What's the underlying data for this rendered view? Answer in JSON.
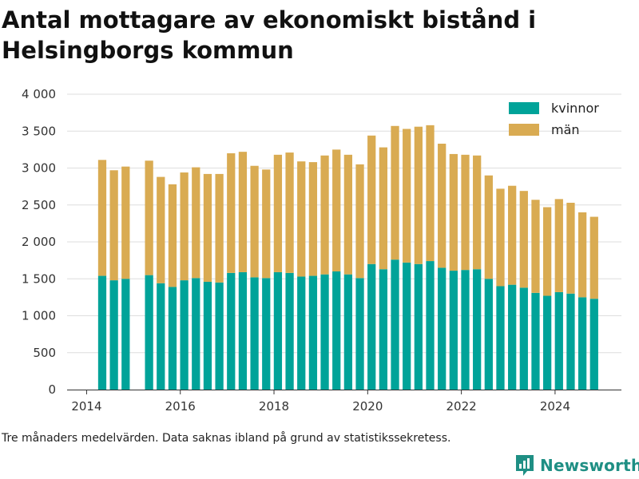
{
  "brand": {
    "name": "Newsworthy",
    "color": "#1f8f84"
  },
  "footnote": "Tre månaders medelvärden. Data saknas ibland på grund av statistikssekretess.",
  "chart_data": {
    "type": "bar",
    "stacked": true,
    "title": "Antal mottagare av ekonomiskt bistånd i Helsingborgs kommun",
    "xlabel": "",
    "ylabel": "",
    "ylim": [
      0,
      4000
    ],
    "xlim": [
      "2013-08",
      "2025-06"
    ],
    "y_ticks": [
      0,
      500,
      1000,
      1500,
      2000,
      2500,
      3000,
      3500,
      4000
    ],
    "y_tick_labels": [
      "0",
      "500",
      "1 000",
      "1 500",
      "2 000",
      "2 500",
      "3 000",
      "3 500",
      "4 000"
    ],
    "x_ticks": [
      "2014",
      "2016",
      "2018",
      "2020",
      "2022",
      "2024"
    ],
    "grid": "horizontal",
    "legend_position": "top-right",
    "x": [
      "2014-05",
      "2014-08",
      "2014-11",
      "2015-05",
      "2015-08",
      "2015-11",
      "2016-02",
      "2016-05",
      "2016-08",
      "2016-11",
      "2017-02",
      "2017-05",
      "2017-08",
      "2017-11",
      "2018-02",
      "2018-05",
      "2018-08",
      "2018-11",
      "2019-02",
      "2019-05",
      "2019-08",
      "2019-11",
      "2020-02",
      "2020-05",
      "2020-08",
      "2020-11",
      "2021-02",
      "2021-05",
      "2021-08",
      "2021-11",
      "2022-02",
      "2022-05",
      "2022-08",
      "2022-11",
      "2023-02",
      "2023-05",
      "2023-08",
      "2023-11",
      "2024-02",
      "2024-05",
      "2024-08",
      "2024-11"
    ],
    "series": [
      {
        "name": "kvinnor",
        "color": "#00a399",
        "values": [
          1540,
          1480,
          1500,
          1550,
          1440,
          1390,
          1480,
          1510,
          1460,
          1450,
          1580,
          1590,
          1520,
          1510,
          1590,
          1580,
          1530,
          1540,
          1560,
          1600,
          1560,
          1510,
          1700,
          1630,
          1760,
          1720,
          1700,
          1740,
          1650,
          1610,
          1620,
          1630,
          1500,
          1400,
          1420,
          1380,
          1310,
          1270,
          1320,
          1300,
          1250,
          1230
        ]
      },
      {
        "name": "män",
        "color": "#d9ab52",
        "values": [
          1570,
          1490,
          1520,
          1550,
          1440,
          1390,
          1460,
          1500,
          1460,
          1470,
          1620,
          1630,
          1510,
          1470,
          1590,
          1630,
          1560,
          1540,
          1610,
          1650,
          1620,
          1540,
          1740,
          1650,
          1810,
          1810,
          1860,
          1840,
          1680,
          1580,
          1560,
          1540,
          1400,
          1320,
          1340,
          1310,
          1260,
          1200,
          1260,
          1230,
          1150,
          1110
        ]
      }
    ]
  }
}
